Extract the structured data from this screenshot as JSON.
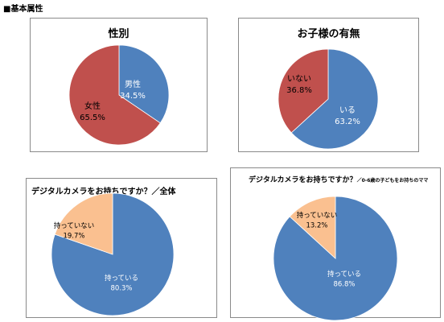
{
  "heading": "■基本属性",
  "colors": {
    "blue": "#4f81bd",
    "red": "#c0504d",
    "peach": "#fac090",
    "label_on_blue": "#ffffff",
    "label_on_other": "#000000"
  },
  "chart_data": [
    {
      "type": "pie",
      "title": "性別",
      "subtitle": "",
      "slices": [
        {
          "label": "男性",
          "value": 34.5,
          "value_label": "34.5%",
          "color": "#4f81bd"
        },
        {
          "label": "女性",
          "value": 65.5,
          "value_label": "65.5%",
          "color": "#c0504d"
        }
      ]
    },
    {
      "type": "pie",
      "title": "お子様の有無",
      "subtitle": "",
      "slices": [
        {
          "label": "いる",
          "value": 63.2,
          "value_label": "63.2%",
          "color": "#4f81bd"
        },
        {
          "label": "いない",
          "value": 36.8,
          "value_label": "36.8%",
          "color": "#c0504d"
        }
      ]
    },
    {
      "type": "pie",
      "title": "デジタルカメラをお持ちですか？／全体",
      "subtitle": "",
      "slices": [
        {
          "label": "持っている",
          "value": 80.3,
          "value_label": "80.3%",
          "color": "#4f81bd"
        },
        {
          "label": "持っていない",
          "value": 19.7,
          "value_label": "19.7%",
          "color": "#fac090"
        }
      ]
    },
    {
      "type": "pie",
      "title": "デジタルカメラをお持ちですか？",
      "subtitle": "／0-6歳の子どもをお持ちのママ",
      "slices": [
        {
          "label": "持っている",
          "value": 86.8,
          "value_label": "86.8%",
          "color": "#4f81bd"
        },
        {
          "label": "持っていない",
          "value": 13.2,
          "value_label": "13.2%",
          "color": "#fac090"
        }
      ]
    }
  ]
}
